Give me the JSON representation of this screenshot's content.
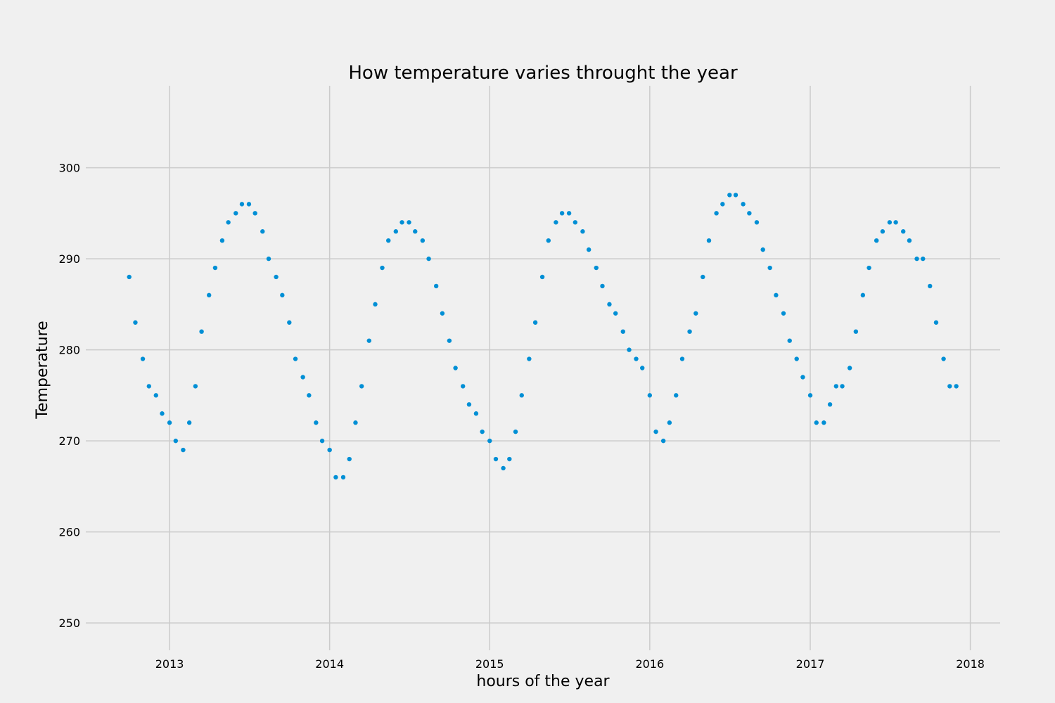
{
  "chart_data": {
    "type": "scatter",
    "title": "How temperature varies throught the year",
    "xlabel": "hours of the year",
    "ylabel": "Temperature",
    "x_type": "date",
    "xlim": [
      "2012-06-24",
      "2018-03-10"
    ],
    "ylim": [
      247.0,
      309.0
    ],
    "x_ticks": [
      "2013-01-01",
      "2014-01-01",
      "2015-01-01",
      "2016-01-01",
      "2017-01-01",
      "2018-01-01"
    ],
    "x_tick_labels": [
      "2013",
      "2014",
      "2015",
      "2016",
      "2017",
      "2018"
    ],
    "y_ticks": [
      250,
      260,
      270,
      280,
      290,
      300
    ],
    "y_tick_labels": [
      "250",
      "260",
      "270",
      "280",
      "290",
      "300"
    ],
    "grid": true,
    "legend": "none",
    "marker_color": "#008fd5",
    "background_color": "#f0f0f0",
    "grid_color": "#cbcbcb",
    "series": [
      {
        "x": [
          "2012-10-01",
          "2012-10-15",
          "2012-11-01",
          "2012-11-15",
          "2012-12-01",
          "2012-12-15",
          "2013-01-01",
          "2013-01-15",
          "2013-02-01",
          "2013-02-15",
          "2013-03-01",
          "2013-03-15",
          "2013-04-01",
          "2013-04-15",
          "2013-05-01",
          "2013-05-15",
          "2013-06-01",
          "2013-06-15",
          "2013-07-01",
          "2013-07-15",
          "2013-08-01",
          "2013-08-15",
          "2013-09-01",
          "2013-09-15",
          "2013-10-01",
          "2013-10-15",
          "2013-11-01",
          "2013-11-15",
          "2013-12-01",
          "2013-12-15",
          "2014-01-01",
          "2014-01-15",
          "2014-02-01",
          "2014-02-15",
          "2014-03-01",
          "2014-03-15",
          "2014-04-01",
          "2014-04-15",
          "2014-05-01",
          "2014-05-15",
          "2014-06-01",
          "2014-06-15",
          "2014-07-01",
          "2014-07-15",
          "2014-08-01",
          "2014-08-15",
          "2014-09-01",
          "2014-09-15",
          "2014-10-01",
          "2014-10-15",
          "2014-11-01",
          "2014-11-15",
          "2014-12-01",
          "2014-12-15",
          "2015-01-01",
          "2015-01-15",
          "2015-02-01",
          "2015-02-15",
          "2015-03-01",
          "2015-03-15",
          "2015-04-01",
          "2015-04-15",
          "2015-05-01",
          "2015-05-15",
          "2015-06-01",
          "2015-06-15",
          "2015-07-01",
          "2015-07-15",
          "2015-08-01",
          "2015-08-15",
          "2015-09-01",
          "2015-09-15",
          "2015-10-01",
          "2015-10-15",
          "2015-11-01",
          "2015-11-15",
          "2015-12-01",
          "2015-12-15",
          "2016-01-01",
          "2016-01-15",
          "2016-02-01",
          "2016-02-15",
          "2016-03-01",
          "2016-03-15",
          "2016-04-01",
          "2016-04-15",
          "2016-05-01",
          "2016-05-15",
          "2016-06-01",
          "2016-06-15",
          "2016-07-01",
          "2016-07-15",
          "2016-08-01",
          "2016-08-15",
          "2016-09-01",
          "2016-09-15",
          "2016-10-01",
          "2016-10-15",
          "2016-11-01",
          "2016-11-15",
          "2016-12-01",
          "2016-12-15",
          "2017-01-01",
          "2017-01-15",
          "2017-02-01",
          "2017-02-15",
          "2017-03-01",
          "2017-03-15",
          "2017-04-01",
          "2017-04-15",
          "2017-05-01",
          "2017-05-15",
          "2017-06-01",
          "2017-06-15",
          "2017-07-01",
          "2017-07-15",
          "2017-08-01",
          "2017-08-15",
          "2017-09-01",
          "2017-09-15",
          "2017-10-01",
          "2017-10-15",
          "2017-11-01",
          "2017-11-15",
          "2017-11-30"
        ],
        "y": [
          288,
          283,
          279,
          276,
          275,
          273,
          272,
          270,
          269,
          272,
          276,
          282,
          286,
          289,
          292,
          294,
          295,
          296,
          296,
          295,
          293,
          290,
          288,
          286,
          283,
          279,
          277,
          275,
          272,
          270,
          269,
          266,
          266,
          268,
          272,
          276,
          281,
          285,
          289,
          292,
          293,
          294,
          294,
          293,
          292,
          290,
          287,
          284,
          281,
          278,
          276,
          274,
          273,
          271,
          270,
          268,
          267,
          268,
          271,
          275,
          279,
          283,
          288,
          292,
          294,
          295,
          295,
          294,
          293,
          291,
          289,
          287,
          285,
          284,
          282,
          280,
          279,
          278,
          275,
          271,
          270,
          272,
          275,
          279,
          282,
          284,
          288,
          292,
          295,
          296,
          297,
          297,
          296,
          295,
          294,
          291,
          289,
          286,
          284,
          281,
          279,
          277,
          275,
          272,
          272,
          274,
          276,
          276,
          278,
          282,
          286,
          289,
          292,
          293,
          294,
          294,
          293,
          292,
          290,
          290,
          287,
          283,
          279,
          276,
          276
        ]
      }
    ]
  }
}
